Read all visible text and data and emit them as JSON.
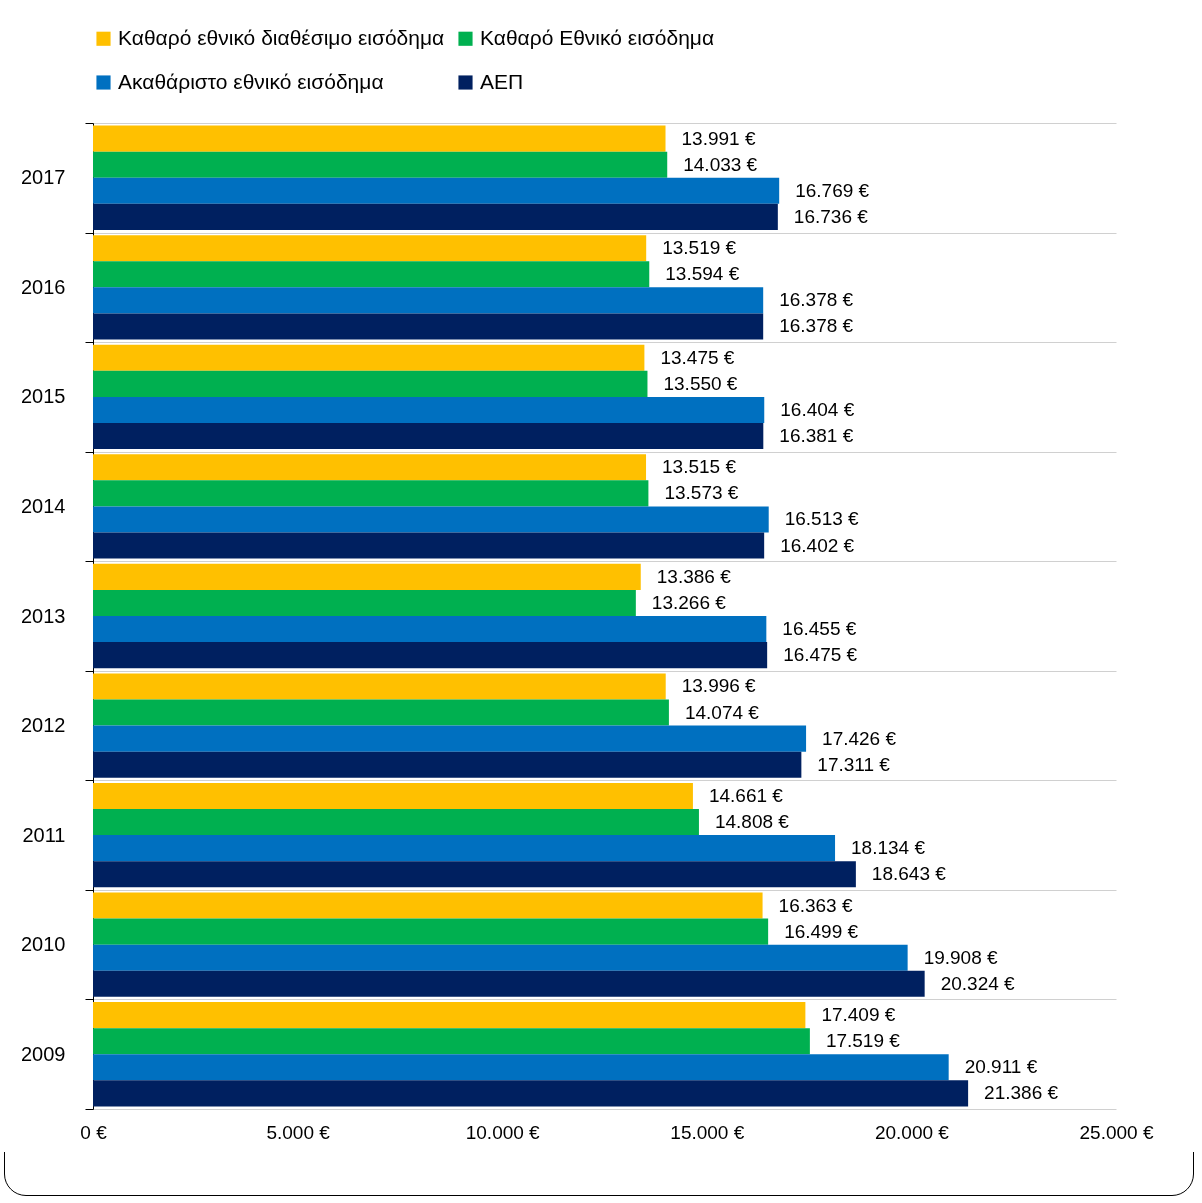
{
  "chart_data": {
    "type": "bar",
    "orientation": "horizontal",
    "categories": [
      "2017",
      "2016",
      "2015",
      "2014",
      "2013",
      "2012",
      "2011",
      "2010",
      "2009"
    ],
    "series": [
      {
        "name": "Καθαρό εθνικό διαθέσιμο εισόδημα",
        "color": "#ffc000",
        "values": [
          13991,
          13519,
          13475,
          13515,
          13386,
          13996,
          14661,
          16363,
          17409
        ],
        "value_labels": [
          "13.991 €",
          "13.519 €",
          "13.475 €",
          "13.515 €",
          "13.386 €",
          "13.996 €",
          "14.661 €",
          "16.363 €",
          "17.409 €"
        ]
      },
      {
        "name": "Καθαρό Εθνικό εισόδημα",
        "color": "#00b050",
        "values": [
          14033,
          13594,
          13550,
          13573,
          13266,
          14074,
          14808,
          16499,
          17519
        ],
        "value_labels": [
          "14.033 €",
          "13.594 €",
          "13.550 €",
          "13.573 €",
          "13.266 €",
          "14.074 €",
          "14.808 €",
          "16.499 €",
          "17.519 €"
        ]
      },
      {
        "name": "Ακαθάριστο εθνικό εισόδημα",
        "color": "#0070c0",
        "values": [
          16769,
          16378,
          16404,
          16513,
          16455,
          17426,
          18134,
          19908,
          20911
        ],
        "value_labels": [
          "16.769 €",
          "16.378 €",
          "16.404 €",
          "16.513 €",
          "16.455 €",
          "17.426 €",
          "18.134 €",
          "19.908 €",
          "20.911 €"
        ]
      },
      {
        "name": "ΑΕΠ",
        "color": "#002060",
        "values": [
          16736,
          16378,
          16381,
          16402,
          16475,
          17311,
          18643,
          20324,
          21386
        ],
        "value_labels": [
          "16.736 €",
          "16.378 €",
          "16.381 €",
          "16.402 €",
          "16.475 €",
          "17.311 €",
          "18.643 €",
          "20.324 €",
          "21.386 €"
        ]
      }
    ],
    "xlim": [
      0,
      25000
    ],
    "xticks": [
      {
        "value": 0,
        "label": "0 €"
      },
      {
        "value": 5000,
        "label": "5.000 €"
      },
      {
        "value": 10000,
        "label": "10.000 €"
      },
      {
        "value": 15000,
        "label": "15.000 €"
      },
      {
        "value": 20000,
        "label": "20.000 €"
      },
      {
        "value": 25000,
        "label": "25.000 €"
      }
    ],
    "grid": "y",
    "legend": "top"
  }
}
